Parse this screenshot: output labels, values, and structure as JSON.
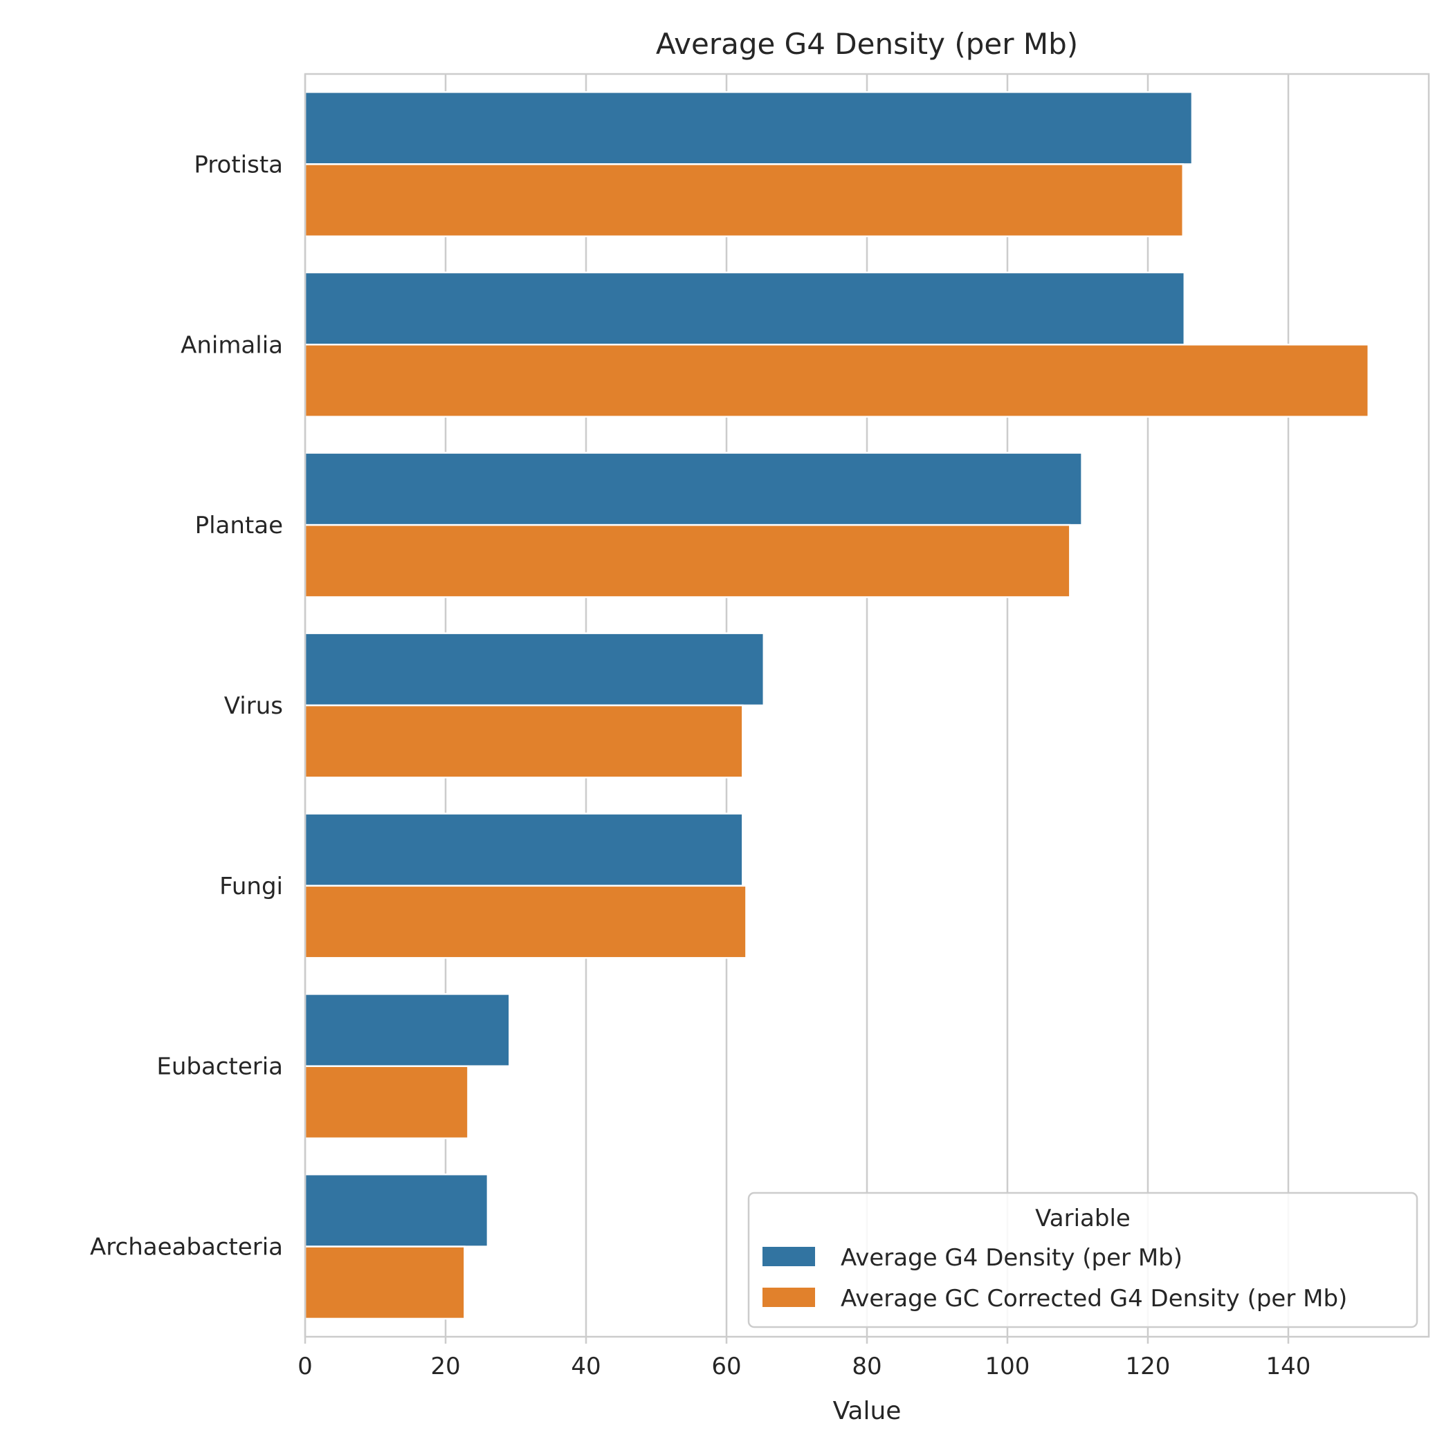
{
  "chart_data": {
    "type": "bar",
    "orientation": "horizontal",
    "title": "Average G4 Density (per Mb)",
    "xlabel": "Value",
    "ylabel": "",
    "xlim": [
      0,
      160
    ],
    "xticks": [
      0,
      20,
      40,
      60,
      80,
      100,
      120,
      140
    ],
    "grid": true,
    "categories": [
      "Protista",
      "Animalia",
      "Plantae",
      "Virus",
      "Fungi",
      "Eubacteria",
      "Archaeabacteria"
    ],
    "series": [
      {
        "name": "Average G4 Density (per Mb)",
        "color": "#3274a1",
        "values": [
          126.3,
          125.2,
          110.6,
          65.3,
          62.3,
          29.1,
          26.0
        ]
      },
      {
        "name": "Average GC Corrected G4 Density (per Mb)",
        "color": "#e1812c",
        "values": [
          125.0,
          151.4,
          108.9,
          62.3,
          62.8,
          23.2,
          22.7
        ]
      }
    ],
    "legend": {
      "title": "Variable",
      "placement": "lower-right"
    }
  }
}
